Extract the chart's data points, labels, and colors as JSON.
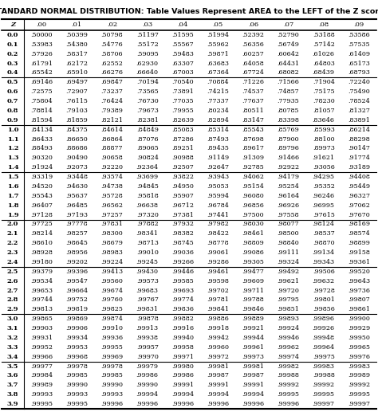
{
  "title": "STANDARD NORMAL DISTRIBUTION: Table Values Represent AREA to the LEFT of the Z score.",
  "columns": [
    "Z",
    ".00",
    ".01",
    ".02",
    ".03",
    ".04",
    ".05",
    ".06",
    ".07",
    ".08",
    ".09"
  ],
  "rows": [
    [
      "0.0",
      ".50000",
      ".50399",
      ".50798",
      ".51197",
      ".51595",
      ".51994",
      ".52392",
      ".52790",
      ".53188",
      ".53586"
    ],
    [
      "0.1",
      ".53983",
      ".54380",
      ".54776",
      ".55172",
      ".55567",
      ".55962",
      ".56356",
      ".56749",
      ".57142",
      ".57535"
    ],
    [
      "0.2",
      ".57926",
      ".58317",
      ".58706",
      ".59095",
      ".59483",
      ".59871",
      ".60257",
      ".60642",
      ".61026",
      ".61409"
    ],
    [
      "0.3",
      ".61791",
      ".62172",
      ".62552",
      ".62930",
      ".63307",
      ".63683",
      ".64058",
      ".64431",
      ".64803",
      ".65173"
    ],
    [
      "0.4",
      ".65542",
      ".65910",
      ".66276",
      ".66640",
      ".67003",
      ".67364",
      ".67724",
      ".68082",
      ".68439",
      ".68793"
    ],
    [
      "0.5",
      ".69146",
      ".69497",
      ".69847",
      ".70194",
      ".70540",
      ".70884",
      ".71226",
      ".71566",
      ".71904",
      ".72240"
    ],
    [
      "0.6",
      ".72575",
      ".72907",
      ".73237",
      ".73565",
      ".73891",
      ".74215",
      ".74537",
      ".74857",
      ".75175",
      ".75490"
    ],
    [
      "0.7",
      ".75804",
      ".76115",
      ".76424",
      ".76730",
      ".77035",
      ".77337",
      ".77637",
      ".77935",
      ".78230",
      ".78524"
    ],
    [
      "0.8",
      ".78814",
      ".79103",
      ".79389",
      ".79673",
      ".79955",
      ".80234",
      ".80511",
      ".80785",
      ".81057",
      ".81327"
    ],
    [
      "0.9",
      ".81594",
      ".81859",
      ".82121",
      ".82381",
      ".82639",
      ".82894",
      ".83147",
      ".83398",
      ".83646",
      ".83891"
    ],
    [
      "1.0",
      ".84134",
      ".84375",
      ".84614",
      ".84849",
      ".85083",
      ".85314",
      ".85543",
      ".85769",
      ".85993",
      ".86214"
    ],
    [
      "1.1",
      ".86433",
      ".86650",
      ".86864",
      ".87076",
      ".87286",
      ".87493",
      ".87698",
      ".87900",
      ".88100",
      ".88298"
    ],
    [
      "1.2",
      ".88493",
      ".88686",
      ".88877",
      ".89065",
      ".89251",
      ".89435",
      ".89617",
      ".89796",
      ".89973",
      ".90147"
    ],
    [
      "1.3",
      ".90320",
      ".90490",
      ".90658",
      ".90824",
      ".90988",
      ".91149",
      ".91309",
      ".91466",
      ".91621",
      ".91774"
    ],
    [
      "1.4",
      ".91924",
      ".92073",
      ".92220",
      ".92364",
      ".92507",
      ".92647",
      ".92785",
      ".92922",
      ".93056",
      ".93189"
    ],
    [
      "1.5",
      ".93319",
      ".93448",
      ".93574",
      ".93699",
      ".93822",
      ".93943",
      ".94062",
      ".94179",
      ".94295",
      ".94408"
    ],
    [
      "1.6",
      ".94520",
      ".94630",
      ".94738",
      ".94845",
      ".94950",
      ".95053",
      ".95154",
      ".95254",
      ".95352",
      ".95449"
    ],
    [
      "1.7",
      ".95543",
      ".95637",
      ".95728",
      ".95818",
      ".95907",
      ".95994",
      ".96080",
      ".96164",
      ".96246",
      ".96327"
    ],
    [
      "1.8",
      ".96407",
      ".96485",
      ".96562",
      ".96638",
      ".96712",
      ".96784",
      ".96856",
      ".96926",
      ".96995",
      ".97062"
    ],
    [
      "1.9",
      ".97128",
      ".97193",
      ".97257",
      ".97320",
      ".97381",
      ".97441",
      ".97500",
      ".97558",
      ".97615",
      ".97670"
    ],
    [
      "2.0",
      ".97725",
      ".97778",
      ".97831",
      ".97882",
      ".97932",
      ".97982",
      ".98030",
      ".98077",
      ".98124",
      ".98169"
    ],
    [
      "2.1",
      ".98214",
      ".98257",
      ".98300",
      ".98341",
      ".98382",
      ".98422",
      ".98461",
      ".98500",
      ".98537",
      ".98574"
    ],
    [
      "2.2",
      ".98610",
      ".98645",
      ".98679",
      ".98713",
      ".98745",
      ".98778",
      ".98809",
      ".98840",
      ".98870",
      ".98899"
    ],
    [
      "2.3",
      ".98928",
      ".98956",
      ".98983",
      ".99010",
      ".99036",
      ".99061",
      ".99086",
      ".99111",
      ".99134",
      ".99158"
    ],
    [
      "2.4",
      ".99180",
      ".99202",
      ".99224",
      ".99245",
      ".99266",
      ".99286",
      ".99305",
      ".99324",
      ".99343",
      ".99361"
    ],
    [
      "2.5",
      ".99379",
      ".99396",
      ".99413",
      ".99430",
      ".99446",
      ".99461",
      ".99477",
      ".99492",
      ".99506",
      ".99520"
    ],
    [
      "2.6",
      ".99534",
      ".99547",
      ".99560",
      ".99573",
      ".99585",
      ".99598",
      ".99609",
      ".99621",
      ".99632",
      ".99643"
    ],
    [
      "2.7",
      ".99653",
      ".99664",
      ".99674",
      ".99683",
      ".99693",
      ".99702",
      ".99711",
      ".99720",
      ".99728",
      ".99736"
    ],
    [
      "2.8",
      ".99744",
      ".99752",
      ".99760",
      ".99767",
      ".99774",
      ".99781",
      ".99788",
      ".99795",
      ".99801",
      ".99807"
    ],
    [
      "2.9",
      ".99813",
      ".99819",
      ".99825",
      ".99831",
      ".99836",
      ".99841",
      ".99846",
      ".99851",
      ".99856",
      ".99861"
    ],
    [
      "3.0",
      ".99865",
      ".99869",
      ".99874",
      ".99878",
      ".99882",
      ".99886",
      ".99889",
      ".99893",
      ".99896",
      ".99900"
    ],
    [
      "3.1",
      ".99903",
      ".99906",
      ".99910",
      ".99913",
      ".99916",
      ".99918",
      ".99921",
      ".99924",
      ".99926",
      ".99929"
    ],
    [
      "3.2",
      ".99931",
      ".99934",
      ".99936",
      ".99938",
      ".99940",
      ".99942",
      ".99944",
      ".99946",
      ".99948",
      ".99950"
    ],
    [
      "3.3",
      ".99952",
      ".99953",
      ".99955",
      ".99957",
      ".99958",
      ".99960",
      ".99961",
      ".99962",
      ".99964",
      ".99965"
    ],
    [
      "3.4",
      ".99966",
      ".99968",
      ".99969",
      ".99970",
      ".99971",
      ".99972",
      ".99973",
      ".99974",
      ".99975",
      ".99976"
    ],
    [
      "3.5",
      ".99977",
      ".99978",
      ".99978",
      ".99979",
      ".99980",
      ".99981",
      ".99981",
      ".99982",
      ".99983",
      ".99983"
    ],
    [
      "3.6",
      ".99984",
      ".99985",
      ".99985",
      ".99986",
      ".99986",
      ".99987",
      ".99987",
      ".99988",
      ".99988",
      ".99989"
    ],
    [
      "3.7",
      ".99989",
      ".99990",
      ".99990",
      ".99990",
      ".99991",
      ".99991",
      ".99991",
      ".99992",
      ".99992",
      ".99992"
    ],
    [
      "3.8",
      ".99993",
      ".99993",
      ".99993",
      ".99994",
      ".99994",
      ".99994",
      ".99994",
      ".99995",
      ".99995",
      ".99995"
    ],
    [
      "3.9",
      ".99995",
      ".99995",
      ".99996",
      ".99996",
      ".99996",
      ".99996",
      ".99996",
      ".99996",
      ".99997",
      ".99997"
    ]
  ],
  "group_borders_after": [
    4,
    9,
    14,
    19,
    24,
    29,
    34
  ],
  "bg_color": "#ffffff",
  "table_font_size": 6.0,
  "title_font_size": 6.8,
  "data_font_size": 5.8
}
